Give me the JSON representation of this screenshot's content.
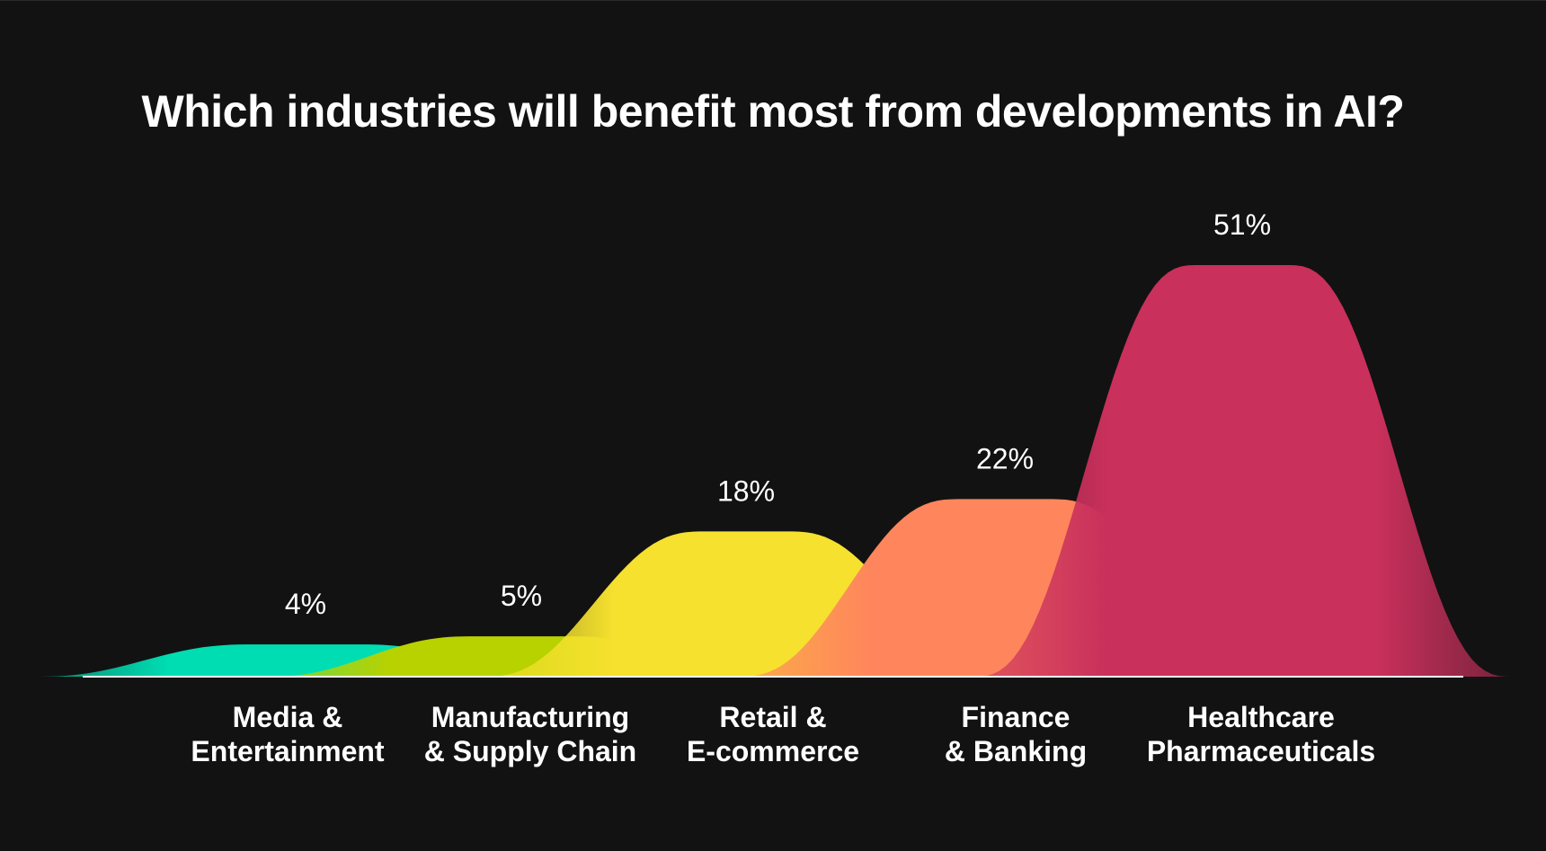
{
  "chart_data": {
    "type": "area",
    "title": "Which industries will benefit most from developments in AI?",
    "categories": [
      [
        "Media &",
        "Entertainment"
      ],
      [
        "Manufacturing",
        "& Supply Chain"
      ],
      [
        "Retail &",
        "E-commerce"
      ],
      [
        "Finance",
        "& Banking"
      ],
      [
        "Healthcare",
        "Pharmaceuticals"
      ]
    ],
    "values": [
      4,
      5,
      18,
      22,
      51
    ],
    "value_labels": [
      "4%",
      "5%",
      "18%",
      "22%",
      "51%"
    ],
    "colors": [
      "#00DDB3",
      "#B8D200",
      "#F5E12E",
      "#FF865C",
      "#C9305C"
    ],
    "unit": "%",
    "ylim": [
      0,
      51
    ],
    "grid": false,
    "legend": "none"
  }
}
